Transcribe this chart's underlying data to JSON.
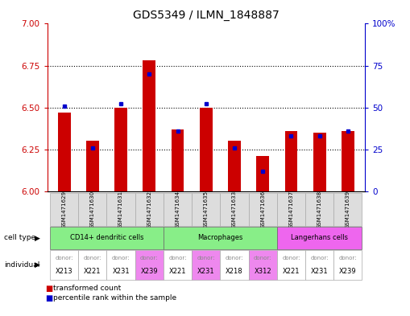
{
  "title": "GDS5349 / ILMN_1848887",
  "samples": [
    "GSM1471629",
    "GSM1471630",
    "GSM1471631",
    "GSM1471632",
    "GSM1471634",
    "GSM1471635",
    "GSM1471633",
    "GSM1471636",
    "GSM1471637",
    "GSM1471638",
    "GSM1471639"
  ],
  "transformed_count": [
    6.47,
    6.3,
    6.5,
    6.78,
    6.37,
    6.5,
    6.3,
    6.21,
    6.36,
    6.35,
    6.36
  ],
  "percentile_rank": [
    51,
    26,
    52,
    70,
    36,
    52,
    26,
    12,
    33,
    33,
    36
  ],
  "y_min": 6.0,
  "y_max": 7.0,
  "y_ticks": [
    6.0,
    6.25,
    6.5,
    6.75,
    7.0
  ],
  "right_y_ticks": [
    0,
    25,
    50,
    75,
    100
  ],
  "right_y_labels": [
    "0",
    "25",
    "50",
    "75",
    "100%"
  ],
  "bar_color": "#cc0000",
  "dot_color": "#0000cc",
  "left_tick_color": "#cc0000",
  "right_tick_color": "#0000cc",
  "cell_types": [
    {
      "label": "CD14+ dendritic cells",
      "start": 0,
      "end": 4,
      "color": "#88ee88"
    },
    {
      "label": "Macrophages",
      "start": 4,
      "end": 8,
      "color": "#88ee88"
    },
    {
      "label": "Langerhans cells",
      "start": 8,
      "end": 11,
      "color": "#ee66ee"
    }
  ],
  "individuals": [
    {
      "donor": "X213",
      "col": 0,
      "color": "#ffffff"
    },
    {
      "donor": "X221",
      "col": 1,
      "color": "#ffffff"
    },
    {
      "donor": "X231",
      "col": 2,
      "color": "#ffffff"
    },
    {
      "donor": "X239",
      "col": 3,
      "color": "#ee88ee"
    },
    {
      "donor": "X221",
      "col": 4,
      "color": "#ffffff"
    },
    {
      "donor": "X231",
      "col": 5,
      "color": "#ee88ee"
    },
    {
      "donor": "X218",
      "col": 6,
      "color": "#ffffff"
    },
    {
      "donor": "X312",
      "col": 7,
      "color": "#ee88ee"
    },
    {
      "donor": "X221",
      "col": 8,
      "color": "#ffffff"
    },
    {
      "donor": "X231",
      "col": 9,
      "color": "#ffffff"
    },
    {
      "donor": "X239",
      "col": 10,
      "color": "#ffffff"
    }
  ],
  "legend_items": [
    {
      "label": "transformed count",
      "color": "#cc0000"
    },
    {
      "label": "percentile rank within the sample",
      "color": "#0000cc"
    }
  ],
  "bg_color": "#ffffff",
  "bar_width": 0.45
}
